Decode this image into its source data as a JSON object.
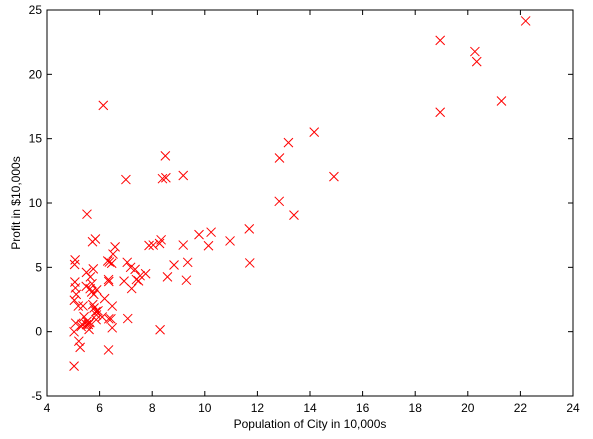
{
  "chart_data": {
    "type": "scatter",
    "title": "",
    "xlabel": "Population of City in 10,000s",
    "ylabel": "Profit in $10,000s",
    "xlim": [
      4,
      24
    ],
    "ylim": [
      -5,
      25
    ],
    "xticks": [
      "4",
      "6",
      "8",
      "10",
      "12",
      "14",
      "16",
      "18",
      "20",
      "22",
      "24"
    ],
    "yticks": [
      "-5",
      "0",
      "5",
      "10",
      "15",
      "20",
      "25"
    ],
    "grid": false,
    "marker": "x",
    "color": "#ff0000",
    "x": [
      22.2,
      18.95,
      20.27,
      20.34,
      21.28,
      18.95,
      14.16,
      13.18,
      12.84,
      14.91,
      12.83,
      13.39,
      11.71,
      11.69,
      10.96,
      10.24,
      10.14,
      9.78,
      9.35,
      9.18,
      9.3,
      9.18,
      8.83,
      8.5,
      8.52,
      8.39,
      8.58,
      8.34,
      8.28,
      8.04,
      7.88,
      7.75,
      7.54,
      7.48,
      7.4,
      7.35,
      7.22,
      7.18,
      7.07,
      7.0,
      7.05,
      6.93,
      6.59,
      6.51,
      6.46,
      6.37,
      6.35,
      6.31,
      6.14,
      6.35,
      6.34,
      6.48,
      6.48,
      6.19,
      6.1,
      5.88,
      5.86,
      5.79,
      5.74,
      5.89,
      5.7,
      5.65,
      5.64,
      5.71,
      5.76,
      5.73,
      5.52,
      5.5,
      5.49,
      5.57,
      5.6,
      5.52,
      5.41,
      5.37,
      5.33,
      5.3,
      5.26,
      5.21,
      5.19,
      5.11,
      5.08,
      5.06,
      5.05,
      5.07,
      5.04,
      5.03,
      5.03,
      5.09,
      5.5,
      5.94,
      6.34,
      6.43,
      5.87,
      5.78,
      5.63,
      5.84,
      8.3
    ],
    "y": [
      24.15,
      22.64,
      21.77,
      20.99,
      17.93,
      17.05,
      15.51,
      14.69,
      13.5,
      12.05,
      10.13,
      9.06,
      5.34,
      7.99,
      7.05,
      7.73,
      6.68,
      7.54,
      5.39,
      6.73,
      4.0,
      12.14,
      5.18,
      13.66,
      11.96,
      11.89,
      4.26,
      7.14,
      6.85,
      6.73,
      6.7,
      4.5,
      4.35,
      3.95,
      4.05,
      4.84,
      3.35,
      5.0,
      1.02,
      11.82,
      5.39,
      3.93,
      6.59,
      6.03,
      5.32,
      5.41,
      3.9,
      5.49,
      17.59,
      1.0,
      -1.42,
      0.3,
      1.99,
      2.57,
      1.14,
      1.3,
      1.56,
      1.84,
      2.1,
      3.25,
      3.08,
      4.26,
      3.34,
      3.73,
      4.88,
      6.99,
      9.13,
      4.61,
      3.52,
      0.56,
      0.17,
      0.8,
      1.16,
      2.0,
      0.57,
      0.4,
      -1.22,
      -0.74,
      1.99,
      2.9,
      3.4,
      3.86,
      5.22,
      5.58,
      2.44,
      -0.01,
      -2.68,
      0.66,
      0.55,
      1.62,
      4.05,
      1.0,
      0.93,
      2.9,
      0.7,
      7.2,
      0.15
    ]
  }
}
